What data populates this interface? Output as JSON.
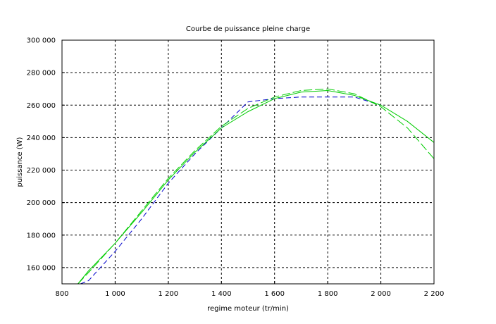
{
  "chart_data": {
    "type": "line",
    "title": "Courbe de puissance pleine charge",
    "xlabel": "regime moteur (tr/min)",
    "ylabel": "puissance (W)",
    "xlim": [
      800,
      2200
    ],
    "ylim": [
      150000,
      300000
    ],
    "grid": true,
    "x_ticks": [
      800,
      1000,
      1200,
      1400,
      1600,
      1800,
      2000,
      2200
    ],
    "y_ticks": [
      160000,
      180000,
      200000,
      220000,
      240000,
      260000,
      280000,
      300000
    ],
    "x_tick_labels": [
      "800",
      "1 000",
      "1 200",
      "1 400",
      "1 600",
      "1 800",
      "2 000",
      "2 200"
    ],
    "y_tick_labels": [
      "160 000",
      "180 000",
      "200 000",
      "220 000",
      "240 000",
      "260 000",
      "280 000",
      "300 000"
    ],
    "series": [
      {
        "style": "dashed",
        "color": "#0000cc",
        "points": [
          [
            870,
            150000
          ],
          [
            900,
            152000
          ],
          [
            1000,
            170000
          ],
          [
            1100,
            190000
          ],
          [
            1200,
            212000
          ],
          [
            1300,
            230000
          ],
          [
            1400,
            246000
          ],
          [
            1500,
            262000
          ],
          [
            1600,
            264000
          ],
          [
            1700,
            265000
          ],
          [
            1800,
            265000
          ],
          [
            1900,
            265000
          ],
          [
            2000,
            260000
          ]
        ]
      },
      {
        "style": "solid",
        "color": "#00cc00",
        "points": [
          [
            860,
            150000
          ],
          [
            900,
            158000
          ],
          [
            1000,
            175000
          ],
          [
            1100,
            194000
          ],
          [
            1200,
            214000
          ],
          [
            1300,
            231000
          ],
          [
            1400,
            246000
          ],
          [
            1500,
            256000
          ],
          [
            1600,
            264000
          ],
          [
            1700,
            268000
          ],
          [
            1800,
            269000
          ],
          [
            1900,
            266000
          ],
          [
            2000,
            260000
          ],
          [
            2100,
            250000
          ],
          [
            2200,
            237000
          ]
        ]
      },
      {
        "style": "dashed",
        "color": "#00cc00",
        "points": [
          [
            860,
            150000
          ],
          [
            900,
            157000
          ],
          [
            1000,
            175000
          ],
          [
            1100,
            195000
          ],
          [
            1200,
            215000
          ],
          [
            1300,
            232000
          ],
          [
            1400,
            247000
          ],
          [
            1500,
            258000
          ],
          [
            1600,
            265000
          ],
          [
            1700,
            269000
          ],
          [
            1800,
            270000
          ],
          [
            1900,
            267000
          ],
          [
            2000,
            259000
          ],
          [
            2100,
            246000
          ],
          [
            2200,
            227000
          ]
        ]
      }
    ]
  }
}
